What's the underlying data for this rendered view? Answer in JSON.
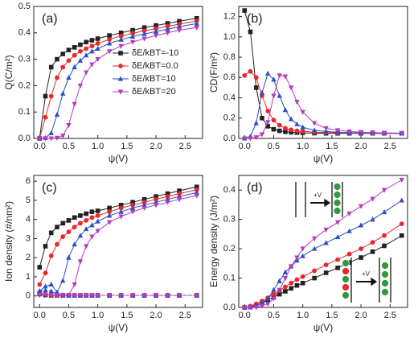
{
  "chart_data": [
    {
      "type": "line",
      "label": "(a)",
      "xlabel": "ψ(V)",
      "ylabel": "Q(C/m²)",
      "legend": "center right",
      "xlim": [
        -0.1,
        2.8
      ],
      "ylim": [
        0,
        0.5
      ],
      "xticks": [
        {
          "value": 0,
          "label": "0.0"
        },
        0.5,
        {
          "value": 1,
          "label": "1.0"
        },
        1.5,
        {
          "value": 2,
          "label": "2.0"
        },
        2.5
      ],
      "yticks": [
        {
          "value": 0,
          "label": "0.0"
        },
        0.1,
        0.2,
        0.3,
        0.4,
        0.5
      ],
      "x": [
        0,
        0.1,
        0.2,
        0.3,
        0.4,
        0.5,
        0.6,
        0.7,
        0.8,
        0.9,
        1.0,
        1.2,
        1.4,
        1.6,
        1.8,
        2.0,
        2.2,
        2.4,
        2.7
      ],
      "series": [
        {
          "name": "δE/kBT=-10",
          "color": "#222222",
          "marker": "square",
          "values": [
            0,
            0.16,
            0.27,
            0.3,
            0.32,
            0.335,
            0.345,
            0.355,
            0.365,
            0.372,
            0.378,
            0.39,
            0.4,
            0.41,
            0.42,
            0.428,
            0.436,
            0.444,
            0.455
          ]
        },
        {
          "name": "δE/kBT=0.0",
          "color": "#e8282b",
          "marker": "circle",
          "values": [
            0,
            0.08,
            0.16,
            0.23,
            0.27,
            0.295,
            0.315,
            0.33,
            0.34,
            0.35,
            0.36,
            0.375,
            0.388,
            0.398,
            0.408,
            0.416,
            0.425,
            0.433,
            0.445
          ]
        },
        {
          "name": "δE/kBT=10",
          "color": "#2a4fc4",
          "marker": "triangle-up",
          "values": [
            0,
            0.002,
            0.02,
            0.09,
            0.17,
            0.23,
            0.27,
            0.295,
            0.315,
            0.33,
            0.34,
            0.36,
            0.374,
            0.386,
            0.396,
            0.405,
            0.414,
            0.423,
            0.435
          ]
        },
        {
          "name": "δE/kBT=20",
          "color": "#b23bbf",
          "marker": "triangle-down",
          "values": [
            0,
            0,
            0,
            0.002,
            0.01,
            0.05,
            0.13,
            0.2,
            0.25,
            0.28,
            0.3,
            0.33,
            0.35,
            0.365,
            0.378,
            0.39,
            0.4,
            0.41,
            0.42
          ]
        }
      ]
    },
    {
      "type": "line",
      "label": "(b)",
      "xlabel": "ψ(V)",
      "ylabel": "CD(F/m²)",
      "xlim": [
        -0.1,
        2.8
      ],
      "ylim": [
        0,
        1.3
      ],
      "xticks": [
        {
          "value": 0,
          "label": "0.0"
        },
        0.5,
        {
          "value": 1,
          "label": "1.0"
        },
        1.5,
        {
          "value": 2,
          "label": "2.0"
        },
        2.5
      ],
      "yticks": [
        {
          "value": 0,
          "label": "0.0"
        },
        0.2,
        0.4,
        0.6,
        0.8,
        {
          "value": 1,
          "label": "1.0"
        },
        1.2
      ],
      "x": [
        0,
        0.1,
        0.2,
        0.3,
        0.4,
        0.5,
        0.6,
        0.7,
        0.8,
        0.9,
        1.0,
        1.2,
        1.4,
        1.6,
        1.8,
        2.0,
        2.2,
        2.4,
        2.7
      ],
      "series": [
        {
          "color": "#222222",
          "marker": "square",
          "values": [
            1.26,
            1.05,
            0.5,
            0.2,
            0.12,
            0.09,
            0.075,
            0.065,
            0.06,
            0.058,
            0.055,
            0.052,
            0.05,
            0.05,
            0.05,
            0.05,
            0.05,
            0.05,
            0.05
          ]
        },
        {
          "color": "#e8282b",
          "marker": "circle",
          "values": [
            0.62,
            0.66,
            0.6,
            0.42,
            0.27,
            0.18,
            0.13,
            0.1,
            0.085,
            0.075,
            0.07,
            0.062,
            0.058,
            0.055,
            0.053,
            0.052,
            0.05,
            0.05,
            0.05
          ]
        },
        {
          "color": "#2a4fc4",
          "marker": "triangle-up",
          "values": [
            0,
            0.02,
            0.15,
            0.45,
            0.64,
            0.58,
            0.42,
            0.28,
            0.19,
            0.14,
            0.11,
            0.08,
            0.068,
            0.06,
            0.056,
            0.054,
            0.052,
            0.05,
            0.05
          ]
        },
        {
          "color": "#b23bbf",
          "marker": "triangle-down",
          "values": [
            0,
            0,
            0.01,
            0.04,
            0.16,
            0.42,
            0.62,
            0.61,
            0.5,
            0.36,
            0.26,
            0.15,
            0.1,
            0.08,
            0.068,
            0.062,
            0.058,
            0.055,
            0.052
          ]
        }
      ]
    },
    {
      "type": "line",
      "label": "(c)",
      "xlabel": "ψ(V)",
      "ylabel": "Ion density (#/nm²)",
      "xlim": [
        -0.1,
        2.8
      ],
      "ylim": [
        -0.6,
        6.3
      ],
      "xticks": [
        {
          "value": 0,
          "label": "0.0"
        },
        0.5,
        {
          "value": 1,
          "label": "1.0"
        },
        1.5,
        {
          "value": 2,
          "label": "2.0"
        },
        2.5
      ],
      "yticks": [
        0,
        1,
        2,
        3,
        4,
        5,
        6
      ],
      "x": [
        0,
        0.1,
        0.2,
        0.3,
        0.4,
        0.5,
        0.6,
        0.7,
        0.8,
        0.9,
        1.0,
        1.2,
        1.4,
        1.6,
        1.8,
        2.0,
        2.2,
        2.4,
        2.7
      ],
      "series": [
        {
          "color": "#222222",
          "marker": "square",
          "dash": true,
          "values": [
            0.1,
            0.05,
            0.03,
            0.03,
            0.03,
            0.03,
            0.03,
            0.03,
            0.03,
            0.03,
            0.03,
            0.03,
            0.03,
            0.03,
            0.03,
            0.03,
            0.03,
            0.03,
            0.03
          ]
        },
        {
          "color": "#e8282b",
          "marker": "circle",
          "dash": true,
          "values": [
            0.2,
            0.1,
            0.05,
            0.03,
            0.03,
            0.03,
            0.03,
            0.03,
            0.03,
            0.03,
            0.03,
            0.03,
            0.03,
            0.03,
            0.03,
            0.03,
            0.03,
            0.03,
            0.03
          ]
        },
        {
          "color": "#2a4fc4",
          "marker": "triangle-up",
          "dash": true,
          "values": [
            0.25,
            0.3,
            0.25,
            0.1,
            0.05,
            0.03,
            0.03,
            0.03,
            0.03,
            0.03,
            0.03,
            0.03,
            0.03,
            0.03,
            0.03,
            0.03,
            0.03,
            0.03,
            0.03
          ]
        },
        {
          "color": "#b23bbf",
          "marker": "triangle-down",
          "dash": true,
          "values": [
            0.05,
            0.05,
            0.05,
            0.05,
            0.05,
            0.05,
            0.03,
            0.03,
            0.03,
            0.03,
            0.03,
            0.03,
            0.03,
            0.03,
            0.03,
            0.03,
            0.03,
            0.03,
            0.03
          ]
        },
        {
          "color": "#222222",
          "marker": "square",
          "values": [
            1.5,
            2.6,
            3.3,
            3.6,
            3.8,
            3.95,
            4.1,
            4.2,
            4.3,
            4.4,
            4.45,
            4.6,
            4.75,
            4.9,
            5.05,
            5.2,
            5.35,
            5.5,
            5.7
          ]
        },
        {
          "color": "#e8282b",
          "marker": "circle",
          "values": [
            0.6,
            1.2,
            2.1,
            2.7,
            3.1,
            3.35,
            3.6,
            3.8,
            3.95,
            4.1,
            4.2,
            4.4,
            4.6,
            4.75,
            4.9,
            5.05,
            5.2,
            5.35,
            5.55
          ]
        },
        {
          "color": "#2a4fc4",
          "marker": "triangle-up",
          "values": [
            0.25,
            0.5,
            0.6,
            0.2,
            0.8,
            2.0,
            2.7,
            3.15,
            3.5,
            3.7,
            3.9,
            4.2,
            4.4,
            4.6,
            4.75,
            4.9,
            5.05,
            5.2,
            5.4
          ]
        },
        {
          "color": "#b23bbf",
          "marker": "triangle-down",
          "values": [
            0.05,
            0.05,
            0.05,
            0.05,
            0.05,
            0.05,
            0.6,
            1.8,
            2.6,
            3.1,
            3.4,
            3.85,
            4.15,
            4.4,
            4.6,
            4.75,
            4.9,
            5.05,
            5.25
          ]
        }
      ]
    },
    {
      "type": "line",
      "label": "(d)",
      "xlabel": "ψ(V)",
      "ylabel": "Energy density (J/m²)",
      "annotations": [
        "+V",
        "+V"
      ],
      "xlim": [
        -0.1,
        2.8
      ],
      "ylim": [
        0,
        0.45
      ],
      "xticks": [
        {
          "value": 0,
          "label": "0.0"
        },
        0.5,
        {
          "value": 1,
          "label": "1.0"
        },
        1.5,
        {
          "value": 2,
          "label": "2.0"
        },
        2.5
      ],
      "yticks": [
        {
          "value": 0,
          "label": "0.0"
        },
        0.1,
        0.2,
        0.3,
        0.4
      ],
      "x": [
        0,
        0.1,
        0.2,
        0.3,
        0.4,
        0.5,
        0.6,
        0.7,
        0.8,
        0.9,
        1.0,
        1.2,
        1.4,
        1.6,
        1.8,
        2.0,
        2.2,
        2.4,
        2.7
      ],
      "series": [
        {
          "color": "#222222",
          "marker": "square",
          "values": [
            0,
            0.002,
            0.008,
            0.015,
            0.025,
            0.035,
            0.045,
            0.055,
            0.065,
            0.075,
            0.083,
            0.1,
            0.118,
            0.135,
            0.153,
            0.17,
            0.19,
            0.21,
            0.245
          ]
        },
        {
          "color": "#e8282b",
          "marker": "circle",
          "values": [
            0,
            0.004,
            0.012,
            0.022,
            0.033,
            0.045,
            0.057,
            0.07,
            0.083,
            0.095,
            0.105,
            0.125,
            0.145,
            0.163,
            0.182,
            0.2,
            0.222,
            0.245,
            0.285
          ]
        },
        {
          "color": "#2a4fc4",
          "marker": "triangle-up",
          "values": [
            0,
            0,
            0.005,
            0.015,
            0.03,
            0.06,
            0.09,
            0.12,
            0.14,
            0.16,
            0.175,
            0.2,
            0.22,
            0.24,
            0.26,
            0.28,
            0.3,
            0.325,
            0.365
          ]
        },
        {
          "color": "#b23bbf",
          "marker": "triangle-down",
          "values": [
            0,
            0,
            0,
            0.005,
            0.012,
            0.03,
            0.06,
            0.1,
            0.14,
            0.17,
            0.2,
            0.235,
            0.265,
            0.29,
            0.32,
            0.345,
            0.37,
            0.4,
            0.435
          ]
        }
      ]
    }
  ]
}
